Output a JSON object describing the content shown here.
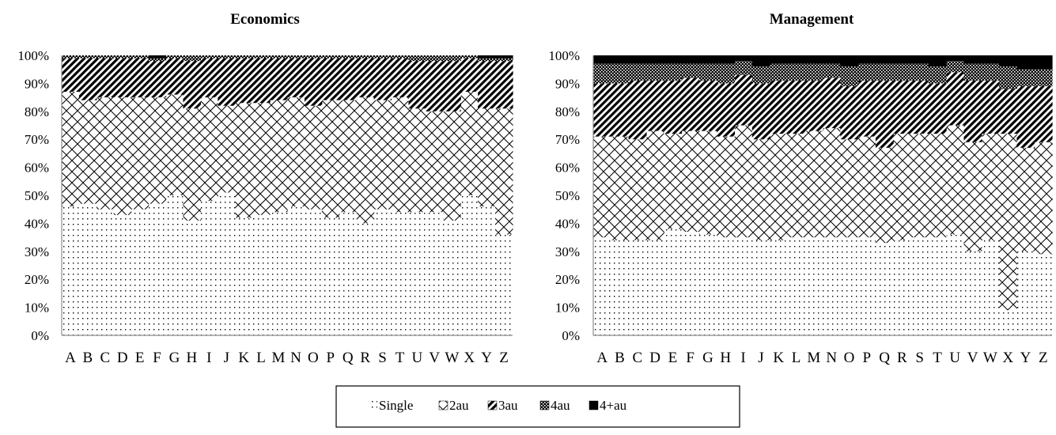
{
  "chart_data": [
    {
      "type": "bar",
      "stacked": true,
      "percent": true,
      "title": "Economics",
      "categories": [
        "A",
        "B",
        "C",
        "D",
        "E",
        "F",
        "G",
        "H",
        "I",
        "J",
        "K",
        "L",
        "M",
        "N",
        "O",
        "P",
        "Q",
        "R",
        "S",
        "T",
        "U",
        "V",
        "W",
        "X",
        "Y",
        "Z"
      ],
      "y_ticks": [
        "0%",
        "10%",
        "20%",
        "30%",
        "40%",
        "50%",
        "60%",
        "70%",
        "80%",
        "90%",
        "100%"
      ],
      "ylim": [
        0,
        100
      ],
      "series": [
        {
          "name": "Single",
          "values": [
            46,
            47,
            45,
            43,
            45,
            47,
            50,
            41,
            48,
            51,
            42,
            43,
            44,
            46,
            45,
            42,
            44,
            40,
            45,
            44,
            44,
            44,
            41,
            50,
            46,
            36
          ]
        },
        {
          "name": "2au",
          "values": [
            41,
            37,
            40,
            42,
            40,
            38,
            36,
            40,
            37,
            31,
            41,
            40,
            40,
            39,
            37,
            42,
            40,
            45,
            39,
            41,
            37,
            36,
            39,
            37,
            35,
            45
          ]
        },
        {
          "name": "3au",
          "values": [
            12,
            15,
            14,
            14,
            14,
            13,
            13,
            17,
            14,
            17,
            16,
            16,
            15,
            14,
            17,
            15,
            15,
            14,
            15,
            14,
            17,
            18,
            18,
            12,
            17,
            17
          ]
        },
        {
          "name": "4au",
          "values": [
            1,
            1,
            1,
            1,
            1,
            1,
            1,
            2,
            1,
            1,
            1,
            1,
            1,
            1,
            1,
            1,
            1,
            1,
            1,
            1,
            2,
            2,
            2,
            1,
            1,
            1
          ]
        },
        {
          "name": "4+au",
          "values": [
            0,
            0,
            0,
            0,
            0,
            1,
            0,
            0,
            0,
            0,
            0,
            0,
            0,
            0,
            0,
            0,
            0,
            0,
            0,
            0,
            0,
            0,
            0,
            0,
            1,
            1
          ]
        }
      ]
    },
    {
      "type": "bar",
      "stacked": true,
      "percent": true,
      "title": "Management",
      "categories": [
        "A",
        "B",
        "C",
        "D",
        "E",
        "F",
        "G",
        "H",
        "I",
        "J",
        "K",
        "L",
        "M",
        "N",
        "O",
        "P",
        "Q",
        "R",
        "S",
        "T",
        "U",
        "V",
        "W",
        "X",
        "Y",
        "Z"
      ],
      "y_ticks": [
        "0%",
        "10%",
        "20%",
        "30%",
        "40%",
        "50%",
        "60%",
        "70%",
        "80%",
        "90%",
        "100%"
      ],
      "ylim": [
        0,
        100
      ],
      "series": [
        {
          "name": "Single",
          "values": [
            35,
            34,
            34,
            34,
            38,
            37,
            36,
            35,
            35,
            34,
            34,
            35,
            35,
            35,
            35,
            35,
            33,
            34,
            35,
            35,
            36,
            30,
            34,
            9,
            30,
            29
          ]
        },
        {
          "name": "2au",
          "values": [
            36,
            37,
            36,
            39,
            34,
            36,
            37,
            36,
            40,
            36,
            38,
            37,
            38,
            39,
            35,
            36,
            34,
            38,
            37,
            37,
            39,
            39,
            38,
            63,
            37,
            40
          ]
        },
        {
          "name": "3au",
          "values": [
            19,
            19,
            21,
            18,
            19,
            19,
            18,
            19,
            18,
            20,
            19,
            19,
            18,
            18,
            19,
            20,
            24,
            19,
            19,
            18,
            19,
            22,
            19,
            16,
            22,
            20
          ]
        },
        {
          "name": "4au",
          "values": [
            7,
            7,
            6,
            6,
            6,
            5,
            6,
            7,
            5,
            6,
            6,
            6,
            6,
            5,
            7,
            6,
            6,
            6,
            6,
            6,
            4,
            6,
            6,
            8,
            6,
            6
          ]
        },
        {
          "name": "4+au",
          "values": [
            3,
            3,
            3,
            3,
            3,
            3,
            3,
            3,
            2,
            4,
            3,
            3,
            3,
            3,
            4,
            3,
            3,
            3,
            3,
            4,
            2,
            3,
            3,
            4,
            5,
            5
          ]
        }
      ]
    }
  ],
  "legend": {
    "items": [
      {
        "label": "Single",
        "pattern": "dots"
      },
      {
        "label": "2au",
        "pattern": "crosshatch"
      },
      {
        "label": "3au",
        "pattern": "diagonal"
      },
      {
        "label": "4au",
        "pattern": "checker"
      },
      {
        "label": "4+au",
        "pattern": "solid"
      }
    ]
  },
  "colors": {
    "ink": "#000000",
    "background": "#ffffff",
    "axis": "#8c8c8c"
  }
}
